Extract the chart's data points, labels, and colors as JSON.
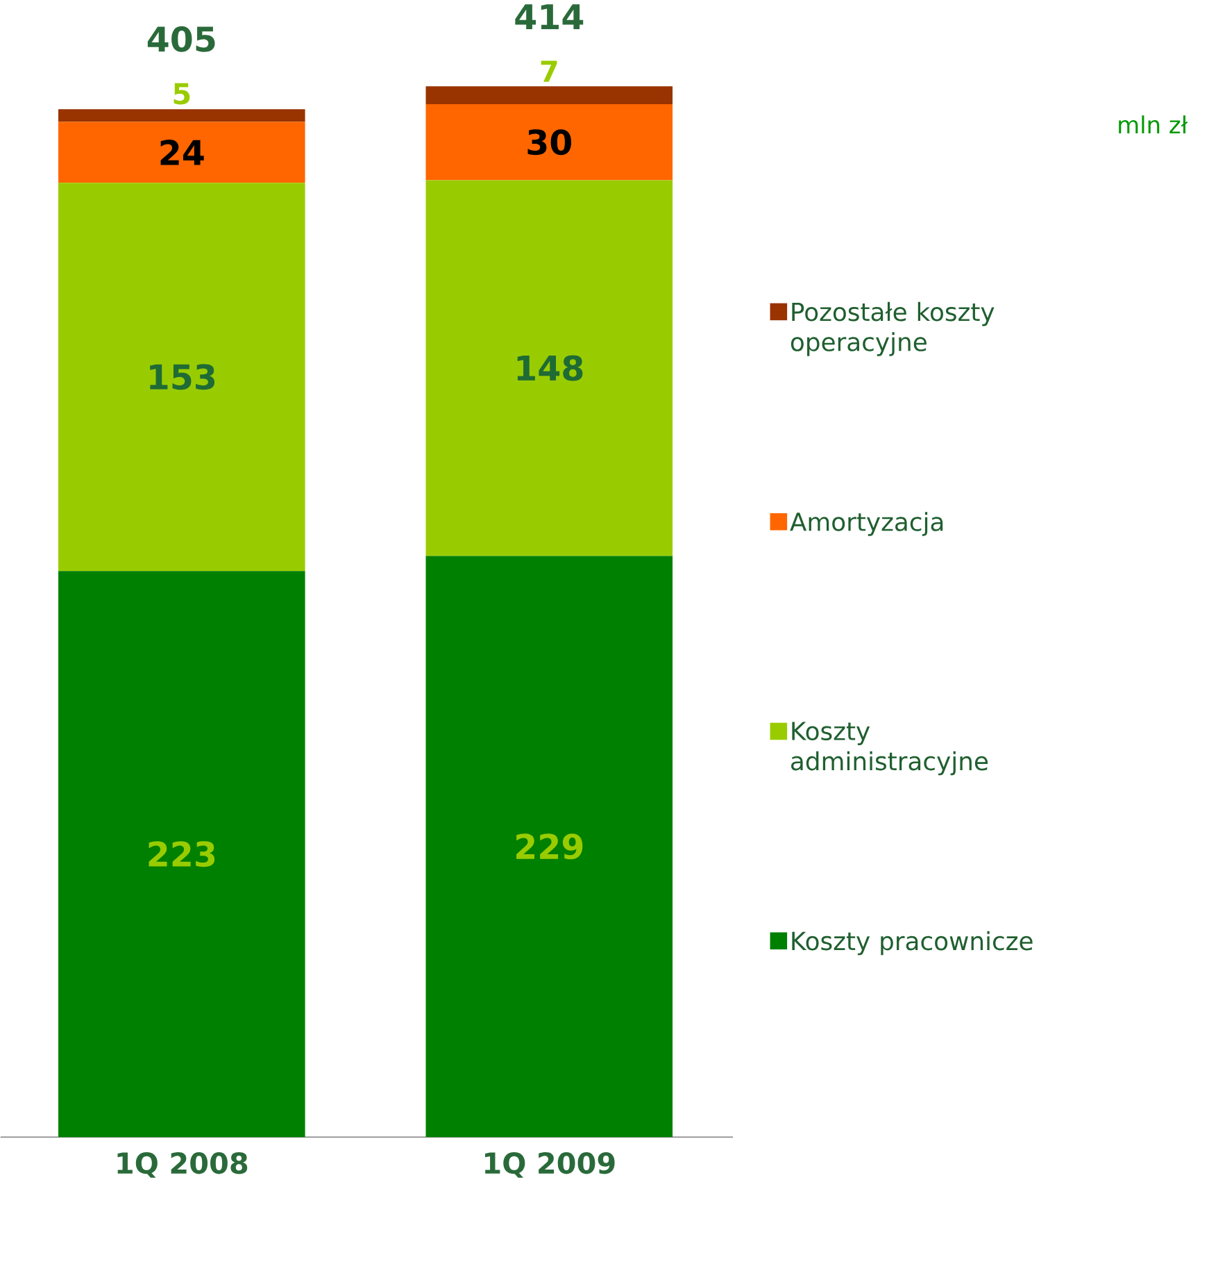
{
  "chart_data": {
    "type": "bar",
    "stacked": true,
    "categories": [
      "1Q 2008",
      "1Q 2009"
    ],
    "series": [
      {
        "name": "Koszty pracownicze",
        "color": "#008000",
        "values": [
          223,
          229
        ]
      },
      {
        "name": "Koszty administracyjne",
        "color": "#99cc00",
        "values": [
          153,
          148
        ]
      },
      {
        "name": "Amortyzacja",
        "color": "#ff6600",
        "values": [
          24,
          30
        ]
      },
      {
        "name": "Pozostałe koszty operacyjne",
        "color": "#993300",
        "values": [
          5,
          7
        ]
      }
    ],
    "data_labels": true,
    "totals": [
      "405",
      "414"
    ],
    "legend": "right",
    "annotations": [
      "mln zł"
    ]
  }
}
